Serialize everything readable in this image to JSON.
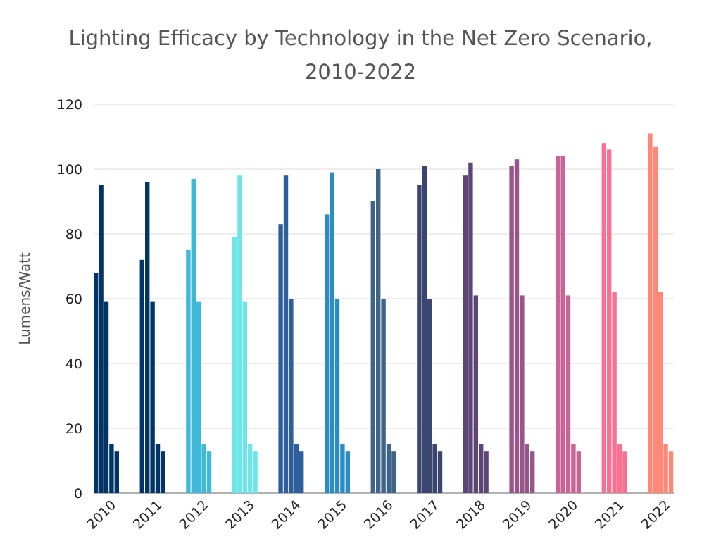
{
  "chart_data": {
    "type": "bar",
    "title_line1": "Lighting Efficacy by Technology in the Net Zero Scenario,",
    "title_line2": "2010-2022",
    "xlabel": "",
    "ylabel": "Lumens/Watt",
    "ylim": [
      0,
      120
    ],
    "yticks": [
      0,
      20,
      40,
      60,
      80,
      100,
      120
    ],
    "grid": true,
    "legend": "none",
    "categories": [
      "2010",
      "2011",
      "2012",
      "2013",
      "2014",
      "2015",
      "2016",
      "2017",
      "2018",
      "2019",
      "2020",
      "2021",
      "2022"
    ],
    "values": [
      [
        68,
        95,
        59,
        15,
        13
      ],
      [
        72,
        96,
        59,
        15,
        13
      ],
      [
        75,
        97,
        59,
        15,
        13
      ],
      [
        79,
        98,
        59,
        15,
        13
      ],
      [
        83,
        98,
        60,
        15,
        13
      ],
      [
        86,
        99,
        60,
        15,
        13
      ],
      [
        90,
        100,
        60,
        15,
        13
      ],
      [
        95,
        101,
        60,
        15,
        13
      ],
      [
        98,
        102,
        61,
        15,
        13
      ],
      [
        101,
        103,
        61,
        15,
        13
      ],
      [
        104,
        104,
        61,
        15,
        13
      ],
      [
        108,
        106,
        62,
        15,
        13
      ],
      [
        111,
        107,
        62,
        15,
        13
      ]
    ],
    "colors": [
      "#003366",
      "#003366",
      "#40b8d8",
      "#6ee6e8",
      "#2e5f9a",
      "#2a8cc0",
      "#3f6488",
      "#3a4570",
      "#5e4578",
      "#96568a",
      "#c86496",
      "#fa7090",
      "#ff8878"
    ]
  }
}
